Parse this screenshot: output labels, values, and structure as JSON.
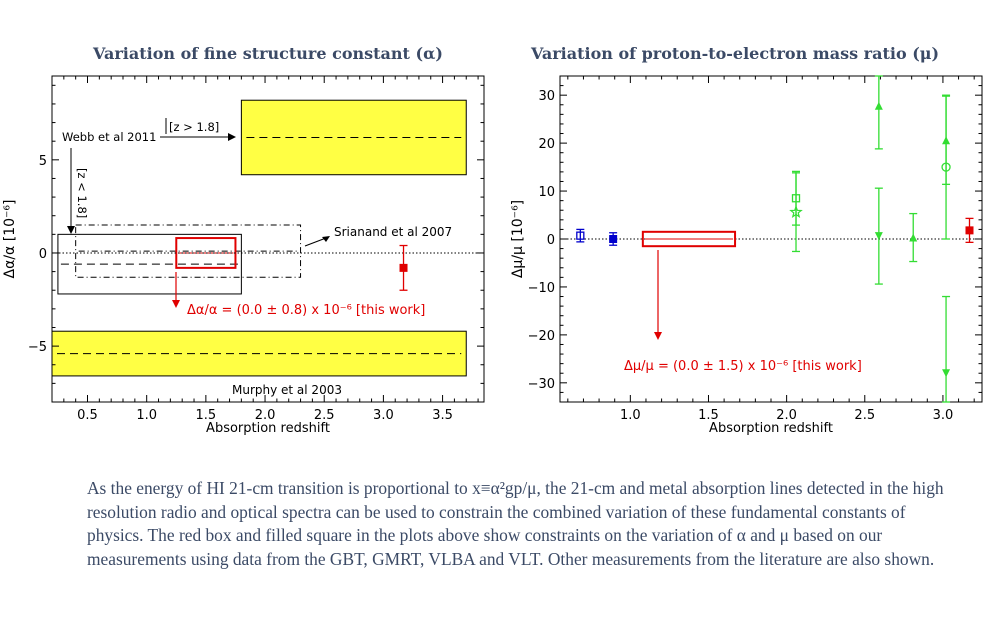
{
  "titles": {
    "left": "Variation of fine structure constant (α)",
    "right": "Variation of proton-to-electron mass ratio (μ)"
  },
  "caption": "As the energy of HI 21-cm transition is proportional to x≡α²gp/μ, the 21-cm and metal absorption lines detected in the high resolution radio and optical spectra can be used to constrain the combined variation of these fundamental constants of physics.  The red box and filled square in the plots above show constraints on the variation of α and μ based on our measurements using data from the GBT, GMRT, VLBA and VLT. Other measurements from the literature are also shown.",
  "chart_data": [
    {
      "type": "scatter",
      "title": "Variation of fine structure constant (α)",
      "xlabel": "Absorption redshift",
      "ylabel": "Δα/α [10⁻⁶]",
      "xlim": [
        0.2,
        3.85
      ],
      "ylim": [
        -8,
        9.5
      ],
      "xticks": [
        "0.5",
        "1.0",
        "1.5",
        "2.0",
        "2.5",
        "3.0",
        "3.5"
      ],
      "yticks": [
        "-5",
        "0",
        "5"
      ],
      "regions": [
        {
          "name": "Webb et al 2011 [z > 1.8]",
          "x0": 1.8,
          "x1": 3.7,
          "y0": 4.2,
          "y1": 8.2,
          "ymid": 6.2,
          "color": "#ffff44"
        },
        {
          "name": "Murphy et al 2003",
          "x0": 0.2,
          "x1": 3.7,
          "y0": -6.6,
          "y1": -4.2,
          "ymid": -5.4,
          "color": "#ffff44"
        },
        {
          "name": "Webb et al 2011 [z < 1.8]",
          "x0": 0.25,
          "x1": 1.8,
          "y0": -2.2,
          "y1": 1.0,
          "ymid": -0.6,
          "style": "solid"
        },
        {
          "name": "Srianand et al 2007",
          "x0": 0.4,
          "x1": 2.3,
          "y0": -1.3,
          "y1": 1.5,
          "ymid": 0.1,
          "style": "dashdot"
        },
        {
          "name": "this work",
          "x0": 1.25,
          "x1": 1.75,
          "y0": -0.8,
          "y1": 0.8,
          "ymid": 0.0,
          "color": "#e00000"
        }
      ],
      "points": [
        {
          "x": 3.17,
          "y": -0.8,
          "yerr": 1.2,
          "color": "#e00000",
          "marker": "filled-square"
        }
      ],
      "annotations": [
        {
          "text": "Webb et al 2011",
          "bracket": "[z > 1.8]"
        },
        {
          "text": "[z < 1.8]"
        },
        {
          "text": "Srianand et al 2007"
        },
        {
          "text": "Δα/α = (0.0 ± 0.8) x 10⁻⁶ [this work]",
          "color": "#e00000"
        },
        {
          "text": "Murphy et al 2003"
        }
      ],
      "grid": false
    },
    {
      "type": "scatter",
      "title": "Variation of proton-to-electron mass ratio (μ)",
      "xlabel": "Absorption redshift",
      "ylabel": "Δμ/μ [10⁻⁶]",
      "xlim": [
        0.55,
        3.25
      ],
      "ylim": [
        -34,
        34
      ],
      "xticks": [
        "1.0",
        "1.5",
        "2.0",
        "2.5",
        "3.0"
      ],
      "yticks": [
        "-30",
        "-20",
        "-10",
        "0",
        "10",
        "20",
        "30"
      ],
      "regions": [
        {
          "name": "this work",
          "x0": 1.08,
          "x1": 1.67,
          "y0": -1.5,
          "y1": 1.5,
          "ymid": 0.0,
          "color": "#e00000"
        }
      ],
      "points": [
        {
          "x": 0.68,
          "y": 0.7,
          "yerr": 1.3,
          "color": "#0000cc",
          "marker": "open-square"
        },
        {
          "x": 0.89,
          "y": 0.0,
          "yerr": 1.3,
          "color": "#0000cc",
          "marker": "filled-square"
        },
        {
          "x": 2.06,
          "y": 8.5,
          "yerr": 5.6,
          "color": "#33dd33",
          "marker": "open-square"
        },
        {
          "x": 2.06,
          "y": 5.6,
          "yerr": 8.2,
          "color": "#33dd33",
          "marker": "open-star"
        },
        {
          "x": 2.59,
          "y": 27.8,
          "yerr": 9.0,
          "color": "#33dd33",
          "marker": "filled-triangle-up"
        },
        {
          "x": 2.59,
          "y": 0.6,
          "yerr": 10.0,
          "color": "#33dd33",
          "marker": "filled-triangle-down"
        },
        {
          "x": 2.81,
          "y": 0.3,
          "yerr": 5.0,
          "color": "#33dd33",
          "marker": "filled-triangle-up"
        },
        {
          "x": 3.02,
          "y": 20.6,
          "yerr": 9.2,
          "color": "#33dd33",
          "marker": "filled-triangle-up"
        },
        {
          "x": 3.02,
          "y": 15.0,
          "yerr": 15.0,
          "color": "#33dd33",
          "marker": "open-circle"
        },
        {
          "x": 3.02,
          "y": -28.0,
          "yerr": 16.0,
          "color": "#33dd33",
          "marker": "filled-triangle-down"
        },
        {
          "x": 3.17,
          "y": 1.8,
          "yerr": 2.5,
          "color": "#e00000",
          "marker": "filled-square"
        }
      ],
      "annotations": [
        {
          "text": "Δμ/μ = (0.0 ± 1.5) x 10⁻⁶ [this work]",
          "color": "#e00000"
        }
      ],
      "grid": false
    }
  ]
}
